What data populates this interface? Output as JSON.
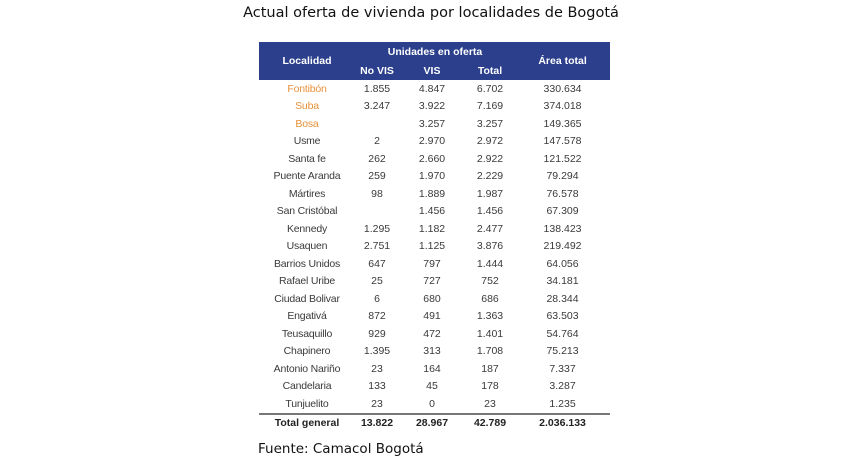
{
  "title": "Actual oferta de vivienda por localidades de Bogotá",
  "colors": {
    "header_bg": "#2b3f8c",
    "highlight": "#e8913a"
  },
  "table": {
    "headers": {
      "localidad": "Localidad",
      "group": "Unidades en oferta",
      "no_vis": "No VIS",
      "vis": "VIS",
      "total": "Total",
      "area": "Área total"
    },
    "rows": [
      {
        "localidad": "Fontibón",
        "no_vis": "1.855",
        "vis": "4.847",
        "total": "6.702",
        "area": "330.634",
        "highlight": true
      },
      {
        "localidad": "Suba",
        "no_vis": "3.247",
        "vis": "3.922",
        "total": "7.169",
        "area": "374.018",
        "highlight": true
      },
      {
        "localidad": "Bosa",
        "no_vis": "",
        "vis": "3.257",
        "total": "3.257",
        "area": "149.365",
        "highlight": true
      },
      {
        "localidad": "Usme",
        "no_vis": "2",
        "vis": "2.970",
        "total": "2.972",
        "area": "147.578"
      },
      {
        "localidad": "Santa fe",
        "no_vis": "262",
        "vis": "2.660",
        "total": "2.922",
        "area": "121.522"
      },
      {
        "localidad": "Puente Aranda",
        "no_vis": "259",
        "vis": "1.970",
        "total": "2.229",
        "area": "79.294"
      },
      {
        "localidad": "Mártires",
        "no_vis": "98",
        "vis": "1.889",
        "total": "1.987",
        "area": "76.578"
      },
      {
        "localidad": "San Cristóbal",
        "no_vis": "",
        "vis": "1.456",
        "total": "1.456",
        "area": "67.309"
      },
      {
        "localidad": "Kennedy",
        "no_vis": "1.295",
        "vis": "1.182",
        "total": "2.477",
        "area": "138.423"
      },
      {
        "localidad": "Usaquen",
        "no_vis": "2.751",
        "vis": "1.125",
        "total": "3.876",
        "area": "219.492"
      },
      {
        "localidad": "Barrios Unidos",
        "no_vis": "647",
        "vis": "797",
        "total": "1.444",
        "area": "64.056"
      },
      {
        "localidad": "Rafael Uribe",
        "no_vis": "25",
        "vis": "727",
        "total": "752",
        "area": "34.181"
      },
      {
        "localidad": "Ciudad Bolivar",
        "no_vis": "6",
        "vis": "680",
        "total": "686",
        "area": "28.344"
      },
      {
        "localidad": "Engativá",
        "no_vis": "872",
        "vis": "491",
        "total": "1.363",
        "area": "63.503"
      },
      {
        "localidad": "Teusaquillo",
        "no_vis": "929",
        "vis": "472",
        "total": "1.401",
        "area": "54.764"
      },
      {
        "localidad": "Chapinero",
        "no_vis": "1.395",
        "vis": "313",
        "total": "1.708",
        "area": "75.213"
      },
      {
        "localidad": "Antonio Nariño",
        "no_vis": "23",
        "vis": "164",
        "total": "187",
        "area": "7.337"
      },
      {
        "localidad": "Candelaria",
        "no_vis": "133",
        "vis": "45",
        "total": "178",
        "area": "3.287"
      },
      {
        "localidad": "Tunjuelito",
        "no_vis": "23",
        "vis": "0",
        "total": "23",
        "area": "1.235"
      }
    ],
    "total": {
      "localidad": "Total general",
      "no_vis": "13.822",
      "vis": "28.967",
      "total": "42.789",
      "area": "2.036.133"
    }
  },
  "source": "Fuente: Camacol Bogotá"
}
